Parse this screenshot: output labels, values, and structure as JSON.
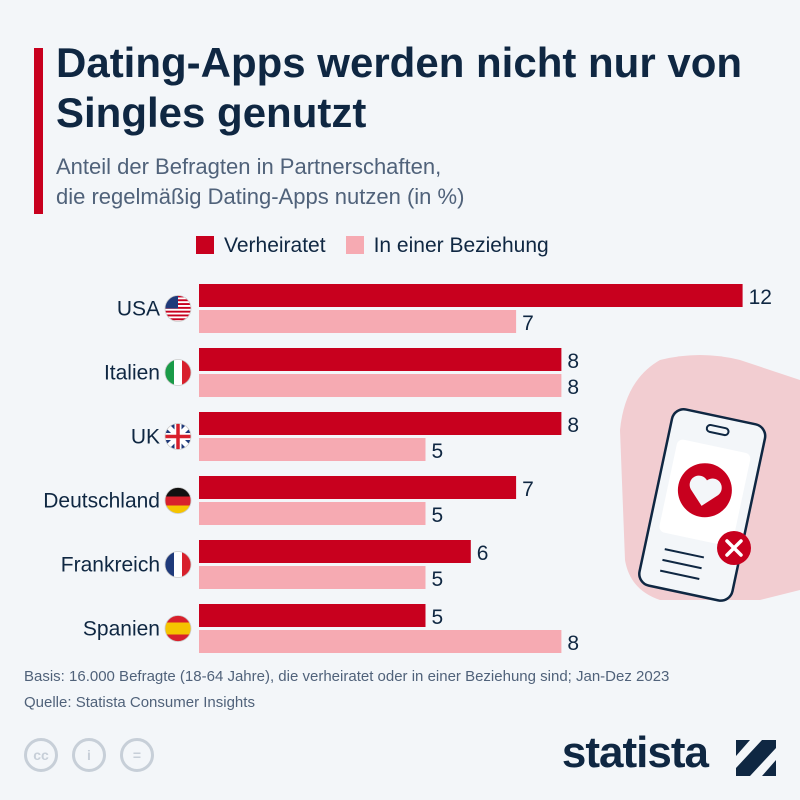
{
  "title": "Dating-Apps werden nicht nur von Singles genutzt",
  "subtitle_line1": "Anteil der Befragten in Partnerschaften,",
  "subtitle_line2": "die regelmäßig Dating-Apps nutzen (in %)",
  "chart_data": {
    "type": "bar",
    "orientation": "horizontal",
    "categories": [
      "USA",
      "Italien",
      "UK",
      "Deutschland",
      "Frankreich",
      "Spanien"
    ],
    "series": [
      {
        "name": "Verheiratet",
        "color": "#c8001e",
        "values": [
          12,
          8,
          8,
          7,
          6,
          5
        ]
      },
      {
        "name": "In einer Beziehung",
        "color": "#f6aab2",
        "values": [
          7,
          8,
          5,
          5,
          5,
          8
        ]
      }
    ],
    "xlim": [
      0,
      12
    ],
    "grid": false,
    "legend": "top"
  },
  "flags": [
    "us-flag-icon",
    "it-flag-icon",
    "uk-flag-icon",
    "de-flag-icon",
    "fr-flag-icon",
    "es-flag-icon"
  ],
  "footer": {
    "basis": "Basis: 16.000 Befragte (18-64 Jahre), die verheiratet oder in einer Beziehung sind; Jan-Dez 2023",
    "source": "Quelle: Statista Consumer Insights"
  },
  "license": {
    "cc": "cc",
    "eq": "="
  },
  "logo": "statista",
  "colors": {
    "accent": "#c8001e",
    "light": "#f6aab2",
    "text": "#0f2742"
  }
}
